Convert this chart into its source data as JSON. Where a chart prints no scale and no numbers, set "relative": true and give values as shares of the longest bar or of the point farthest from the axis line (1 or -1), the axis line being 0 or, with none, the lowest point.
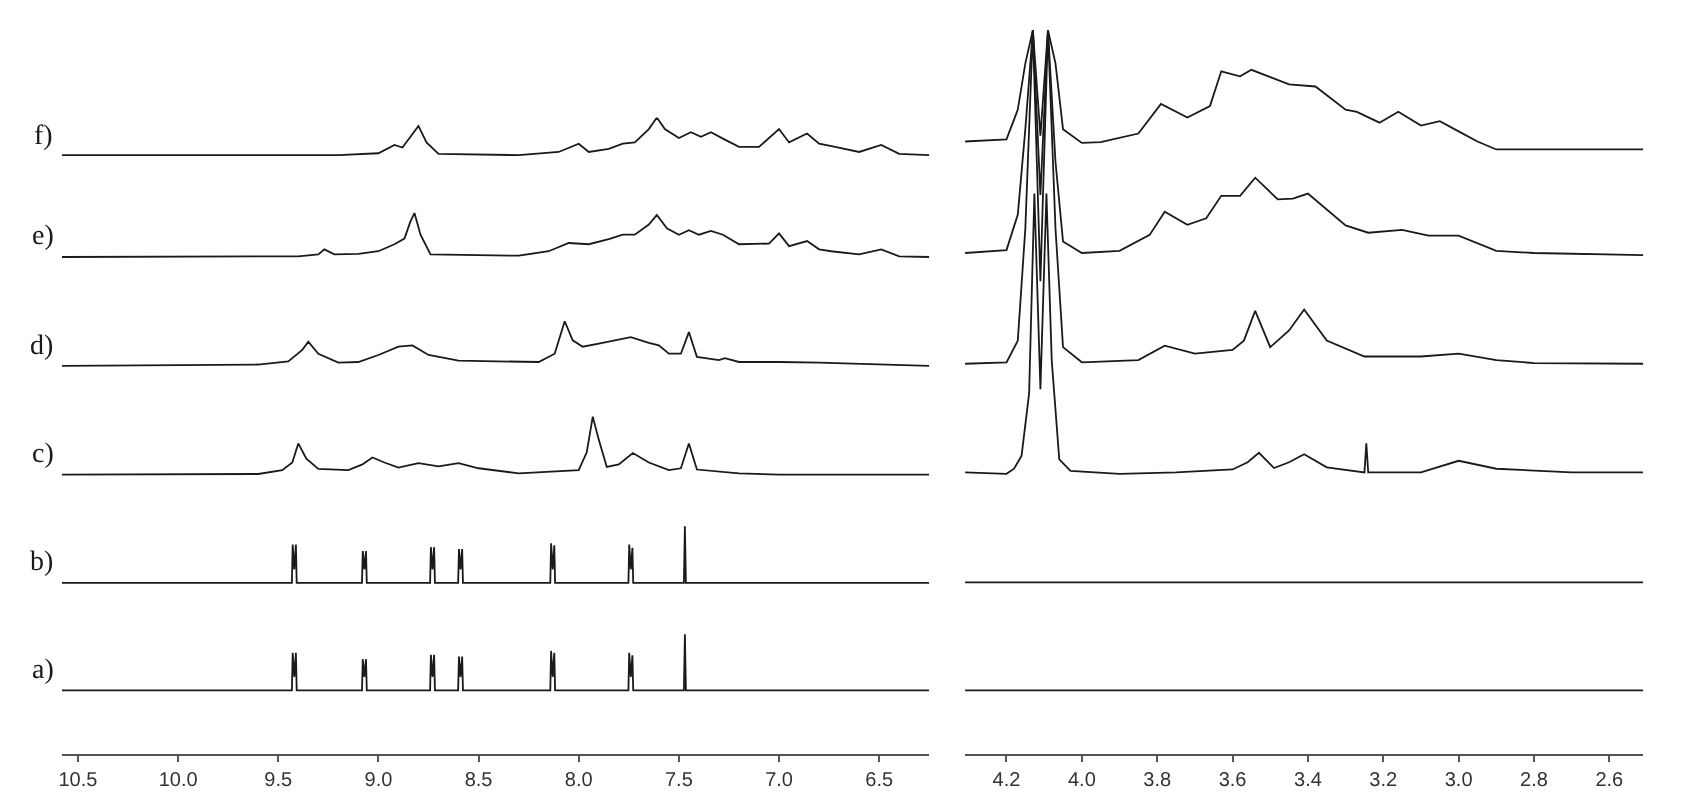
{
  "chart_data": [
    {
      "type": "line",
      "relative": true,
      "legend": false,
      "marker": "none",
      "line_style": "solid",
      "xlim": [
        10.58,
        6.25
      ],
      "xticks": [
        10.5,
        {
          "value": 10,
          "label": "10.0"
        },
        9.5,
        {
          "value": 9,
          "label": "9.0"
        },
        8.5,
        {
          "value": 8,
          "label": "8.0"
        },
        7.5,
        {
          "value": 7,
          "label": "7.0"
        },
        6.5
      ],
      "series": [
        {
          "name": "a)",
          "color": "#1a1a1a",
          "x": [
            10.58,
            9.432,
            9.428,
            9.42,
            9.412,
            9.408,
            9.082,
            9.078,
            9.07,
            9.062,
            9.058,
            8.742,
            8.738,
            8.73,
            8.722,
            8.718,
            8.602,
            8.598,
            8.59,
            8.582,
            8.578,
            8.142,
            8.138,
            8.13,
            8.122,
            8.118,
            7.752,
            7.748,
            7.74,
            7.732,
            7.728,
            7.475,
            7.47,
            7.465,
            6.25
          ],
          "values": [
            0.1,
            0.1,
            0.159,
            0.121,
            0.159,
            0.1,
            0.1,
            0.149,
            0.121,
            0.149,
            0.1,
            0.1,
            0.156,
            0.121,
            0.156,
            0.1,
            0.1,
            0.153,
            0.121,
            0.153,
            0.1,
            0.1,
            0.162,
            0.121,
            0.159,
            0.1,
            0.1,
            0.159,
            0.121,
            0.155,
            0.1,
            0.1,
            0.188,
            0.1,
            0.1
          ]
        },
        {
          "name": "b)",
          "color": "#1a1a1a",
          "x": [
            10.58,
            9.432,
            9.428,
            9.42,
            9.412,
            9.408,
            9.082,
            9.078,
            9.07,
            9.062,
            9.058,
            8.742,
            8.738,
            8.73,
            8.722,
            8.718,
            8.602,
            8.598,
            8.59,
            8.582,
            8.578,
            8.142,
            8.138,
            8.13,
            8.122,
            8.118,
            7.752,
            7.748,
            7.74,
            7.732,
            7.728,
            7.475,
            7.47,
            7.465,
            6.25
          ],
          "values": [
            0.269,
            0.269,
            0.329,
            0.29,
            0.329,
            0.269,
            0.269,
            0.319,
            0.29,
            0.319,
            0.269,
            0.269,
            0.325,
            0.29,
            0.325,
            0.269,
            0.269,
            0.322,
            0.29,
            0.322,
            0.269,
            0.269,
            0.331,
            0.29,
            0.328,
            0.269,
            0.269,
            0.329,
            0.29,
            0.324,
            0.269,
            0.269,
            0.358,
            0.269,
            0.269
          ]
        },
        {
          "name": "c)",
          "color": "#1a1a1a",
          "x": [
            10.58,
            9.6,
            9.48,
            9.43,
            9.4,
            9.36,
            9.3,
            9.15,
            9.08,
            9.03,
            8.97,
            8.9,
            8.8,
            8.7,
            8.6,
            8.5,
            8.3,
            8.0,
            7.96,
            7.93,
            7.9,
            7.86,
            7.8,
            7.73,
            7.65,
            7.55,
            7.49,
            7.45,
            7.41,
            7.2,
            7.0,
            6.25
          ],
          "values": [
            0.439,
            0.44,
            0.446,
            0.458,
            0.488,
            0.464,
            0.448,
            0.446,
            0.455,
            0.466,
            0.458,
            0.45,
            0.457,
            0.452,
            0.457,
            0.449,
            0.441,
            0.446,
            0.474,
            0.53,
            0.494,
            0.451,
            0.455,
            0.473,
            0.458,
            0.446,
            0.449,
            0.488,
            0.447,
            0.441,
            0.439,
            0.439
          ]
        },
        {
          "name": "d)",
          "color": "#1a1a1a",
          "x": [
            10.58,
            9.6,
            9.45,
            9.38,
            9.35,
            9.3,
            9.2,
            9.1,
            9.0,
            8.9,
            8.83,
            8.75,
            8.6,
            8.2,
            8.12,
            8.07,
            8.03,
            7.98,
            7.9,
            7.82,
            7.74,
            7.65,
            7.6,
            7.55,
            7.49,
            7.45,
            7.41,
            7.3,
            7.27,
            7.2,
            7.0,
            6.8,
            6.25
          ],
          "values": [
            0.61,
            0.612,
            0.617,
            0.635,
            0.648,
            0.629,
            0.615,
            0.616,
            0.627,
            0.64,
            0.642,
            0.627,
            0.618,
            0.616,
            0.629,
            0.68,
            0.65,
            0.64,
            0.645,
            0.65,
            0.655,
            0.646,
            0.642,
            0.629,
            0.629,
            0.663,
            0.624,
            0.619,
            0.622,
            0.616,
            0.616,
            0.615,
            0.61
          ]
        },
        {
          "name": "e)",
          "color": "#1a1a1a",
          "x": [
            10.58,
            9.4,
            9.3,
            9.27,
            9.22,
            9.1,
            9.0,
            8.92,
            8.87,
            8.84,
            8.82,
            8.79,
            8.74,
            8.3,
            8.15,
            8.05,
            7.95,
            7.85,
            7.78,
            7.72,
            7.65,
            7.61,
            7.56,
            7.5,
            7.45,
            7.4,
            7.34,
            7.28,
            7.2,
            7.05,
            7.0,
            6.95,
            6.86,
            6.8,
            6.74,
            6.6,
            6.49,
            6.4,
            6.25
          ],
          "values": [
            0.781,
            0.782,
            0.785,
            0.793,
            0.785,
            0.786,
            0.79,
            0.801,
            0.81,
            0.837,
            0.85,
            0.816,
            0.785,
            0.783,
            0.79,
            0.803,
            0.801,
            0.809,
            0.816,
            0.816,
            0.832,
            0.847,
            0.826,
            0.816,
            0.823,
            0.816,
            0.822,
            0.816,
            0.801,
            0.802,
            0.818,
            0.798,
            0.806,
            0.793,
            0.79,
            0.785,
            0.793,
            0.782,
            0.781
          ]
        },
        {
          "name": "f)",
          "color": "#1a1a1a",
          "x": [
            10.58,
            9.2,
            9.0,
            8.92,
            8.88,
            8.8,
            8.76,
            8.7,
            8.3,
            8.1,
            8.0,
            7.95,
            7.85,
            7.78,
            7.72,
            7.65,
            7.61,
            7.57,
            7.5,
            7.44,
            7.39,
            7.34,
            7.28,
            7.2,
            7.1,
            7.0,
            6.95,
            6.86,
            6.8,
            6.72,
            6.6,
            6.49,
            6.4,
            6.25
          ],
          "values": [
            0.941,
            0.941,
            0.944,
            0.957,
            0.953,
            0.987,
            0.961,
            0.943,
            0.941,
            0.946,
            0.959,
            0.946,
            0.951,
            0.959,
            0.961,
            0.982,
            1,
            0.982,
            0.968,
            0.977,
            0.97,
            0.977,
            0.967,
            0.954,
            0.954,
            0.982,
            0.961,
            0.975,
            0.959,
            0.954,
            0.946,
            0.957,
            0.943,
            0.941
          ]
        }
      ]
    },
    {
      "type": "line",
      "relative": true,
      "legend": false,
      "marker": "none",
      "line_style": "solid",
      "xlim": [
        4.31,
        2.51
      ],
      "xticks": [
        4.2,
        {
          "value": 4,
          "label": "4.0"
        },
        3.8,
        3.6,
        3.4,
        3.2,
        {
          "value": 3,
          "label": "3.0"
        },
        2.8,
        2.6
      ],
      "series": [
        {
          "color": "#1a1a1a",
          "x": [
            4.31,
            2.51
          ],
          "values": [
            0.088,
            0.088
          ]
        },
        {
          "color": "#1a1a1a",
          "x": [
            4.31,
            2.51
          ],
          "values": [
            0.237,
            0.237
          ]
        },
        {
          "color": "#1a1a1a",
          "x": [
            4.31,
            4.2,
            4.18,
            4.16,
            4.14,
            4.126,
            4.11,
            4.094,
            4.08,
            4.06,
            4.03,
            3.9,
            3.75,
            3.6,
            3.56,
            3.53,
            3.49,
            3.45,
            3.41,
            3.35,
            3.25,
            3.245,
            3.24,
            3.1,
            3.0,
            2.9,
            2.7,
            2.51
          ],
          "values": [
            0.389,
            0.387,
            0.394,
            0.412,
            0.498,
            0.774,
            0.504,
            0.774,
            0.544,
            0.407,
            0.391,
            0.387,
            0.389,
            0.393,
            0.403,
            0.416,
            0.395,
            0.403,
            0.414,
            0.396,
            0.389,
            0.429,
            0.389,
            0.389,
            0.405,
            0.394,
            0.389,
            0.389
          ]
        },
        {
          "color": "#1a1a1a",
          "x": [
            4.31,
            4.2,
            4.17,
            4.15,
            4.13,
            4.11,
            4.09,
            4.07,
            4.05,
            4.0,
            3.85,
            3.78,
            3.7,
            3.6,
            3.57,
            3.54,
            3.5,
            3.45,
            3.41,
            3.35,
            3.25,
            3.1,
            3.0,
            2.9,
            2.8,
            2.51
          ],
          "values": [
            0.539,
            0.541,
            0.571,
            0.726,
            1,
            0.653,
            1,
            0.726,
            0.562,
            0.541,
            0.544,
            0.564,
            0.553,
            0.558,
            0.571,
            0.612,
            0.562,
            0.585,
            0.614,
            0.571,
            0.549,
            0.549,
            0.553,
            0.544,
            0.54,
            0.539
          ]
        },
        {
          "color": "#1a1a1a",
          "x": [
            4.31,
            4.2,
            4.17,
            4.15,
            4.13,
            4.11,
            4.09,
            4.07,
            4.05,
            4.0,
            3.9,
            3.82,
            3.78,
            3.72,
            3.67,
            3.63,
            3.58,
            3.54,
            3.48,
            3.44,
            3.4,
            3.3,
            3.24,
            3.15,
            3.08,
            3.0,
            2.9,
            2.8,
            2.51
          ],
          "values": [
            0.692,
            0.696,
            0.745,
            0.863,
            1,
            0.772,
            1,
            0.818,
            0.708,
            0.692,
            0.695,
            0.717,
            0.749,
            0.731,
            0.74,
            0.771,
            0.771,
            0.796,
            0.766,
            0.767,
            0.774,
            0.73,
            0.72,
            0.724,
            0.716,
            0.716,
            0.695,
            0.692,
            0.689
          ]
        },
        {
          "color": "#1a1a1a",
          "x": [
            4.31,
            4.2,
            4.17,
            4.15,
            4.13,
            4.11,
            4.09,
            4.07,
            4.05,
            4.0,
            3.95,
            3.85,
            3.79,
            3.72,
            3.66,
            3.63,
            3.58,
            3.55,
            3.45,
            3.38,
            3.3,
            3.27,
            3.21,
            3.16,
            3.1,
            3.05,
            3.0,
            2.95,
            2.9,
            2.51
          ],
          "values": [
            0.846,
            0.849,
            0.89,
            0.954,
            1,
            0.854,
            1,
            0.954,
            0.863,
            0.844,
            0.845,
            0.857,
            0.898,
            0.879,
            0.895,
            0.943,
            0.936,
            0.945,
            0.925,
            0.922,
            0.89,
            0.887,
            0.872,
            0.887,
            0.868,
            0.874,
            0.86,
            0.846,
            0.835,
            0.835
          ]
        }
      ]
    }
  ]
}
